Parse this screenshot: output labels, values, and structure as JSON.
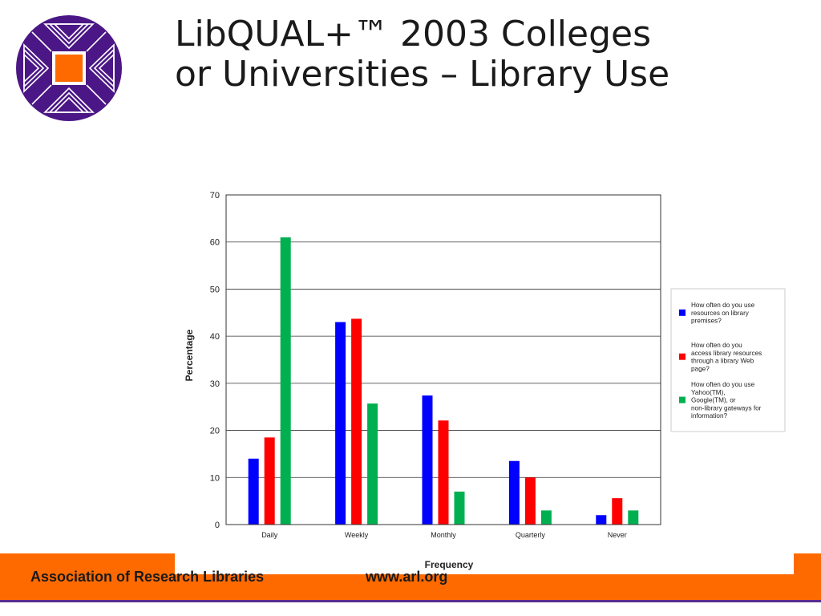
{
  "slide": {
    "title_line1": "LibQUAL+™ 2003 Colleges",
    "title_line2": "or Universities – Library Use"
  },
  "footer": {
    "organization": "Association of Research Libraries",
    "url": "www.arl.org"
  },
  "logo": {
    "icon": "arl-logo-icon"
  },
  "colors": {
    "footer_band": "#ff6a00",
    "footer_line": "#5a2d8c",
    "logo_purple": "#4b1786",
    "logo_orange": "#ff6a00"
  },
  "chart_data": {
    "type": "bar",
    "title": "",
    "xlabel": "Frequency",
    "ylabel": "Percentage",
    "ylim": [
      0,
      70
    ],
    "yticks": [
      0,
      10,
      20,
      30,
      40,
      50,
      60,
      70
    ],
    "grid": true,
    "legend_position": "right",
    "categories": [
      "Daily",
      "Weekly",
      "Monthly",
      "Quarterly",
      "Never"
    ],
    "series": [
      {
        "name": "How often do you use resources on library premises?",
        "legend_lines": [
          "How often do you use",
          "resources on library",
          "premises?"
        ],
        "color": "#0000ff",
        "values": [
          14,
          43,
          27.4,
          13.5,
          2
        ]
      },
      {
        "name": "How often do you access library resources through a library Web page?",
        "legend_lines": [
          "How often do you",
          "access library resources",
          "through a library Web",
          "page?"
        ],
        "color": "#ff0000",
        "values": [
          18.5,
          43.7,
          22.1,
          10,
          5.6
        ]
      },
      {
        "name": "How often do you use Yahoo(TM), Google(TM), or non-library gateways for information?",
        "legend_lines": [
          "How often do you use",
          "Yahoo(TM),",
          "Google(TM), or",
          "non-library gateways for",
          "information?"
        ],
        "color": "#00b050",
        "values": [
          61,
          25.7,
          7,
          3,
          3
        ]
      }
    ]
  }
}
